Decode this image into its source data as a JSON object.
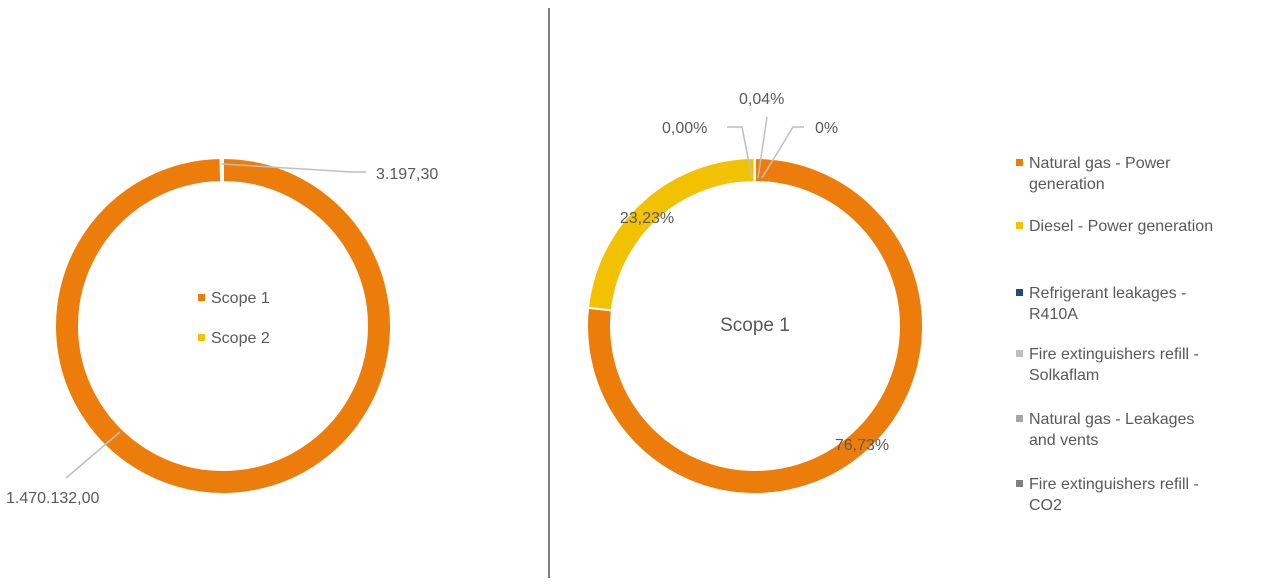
{
  "chart_data": [
    {
      "type": "pie",
      "donut": true,
      "title": "",
      "categories": [
        "Scope 1",
        "Scope 2"
      ],
      "values": [
        1470132.0,
        3197.3
      ],
      "data_labels": [
        "1.470.132,00",
        "3.197,30"
      ],
      "colors": [
        "#ED7D0A",
        "#F2C200"
      ],
      "legend": {
        "position": "center",
        "items": [
          "Scope 1",
          "Scope 2"
        ]
      }
    },
    {
      "type": "pie",
      "donut": true,
      "center_text": "Scope 1",
      "categories": [
        "Natural gas - Power generation",
        "Diesel - Power generation",
        "Refrigerant leakages - R410A",
        "Fire extinguishers refill - Solkaflam",
        "Natural gas - Leakages and vents",
        "Fire extinguishers refill - CO2"
      ],
      "values": [
        76.73,
        23.23,
        0.0,
        0.0,
        0.04,
        0.0
      ],
      "data_labels": [
        "76,73%",
        "23,23%",
        "",
        "0,00%",
        "0,04%",
        "0%"
      ],
      "colors": [
        "#ED7D0A",
        "#F2C200",
        "#1F4E79",
        "#BFBFBF",
        "#A6A6A6",
        "#7F7F7F"
      ],
      "legend": {
        "position": "right",
        "items": [
          [
            "Natural gas - Power",
            "generation"
          ],
          [
            "Diesel - Power generation"
          ],
          [
            "Refrigerant leakages -",
            "R410A"
          ],
          [
            "Fire extinguishers refill -",
            "Solkaflam"
          ],
          [
            "Natural gas - Leakages",
            "and vents"
          ],
          [
            "Fire extinguishers refill -",
            "CO2"
          ]
        ]
      }
    }
  ]
}
